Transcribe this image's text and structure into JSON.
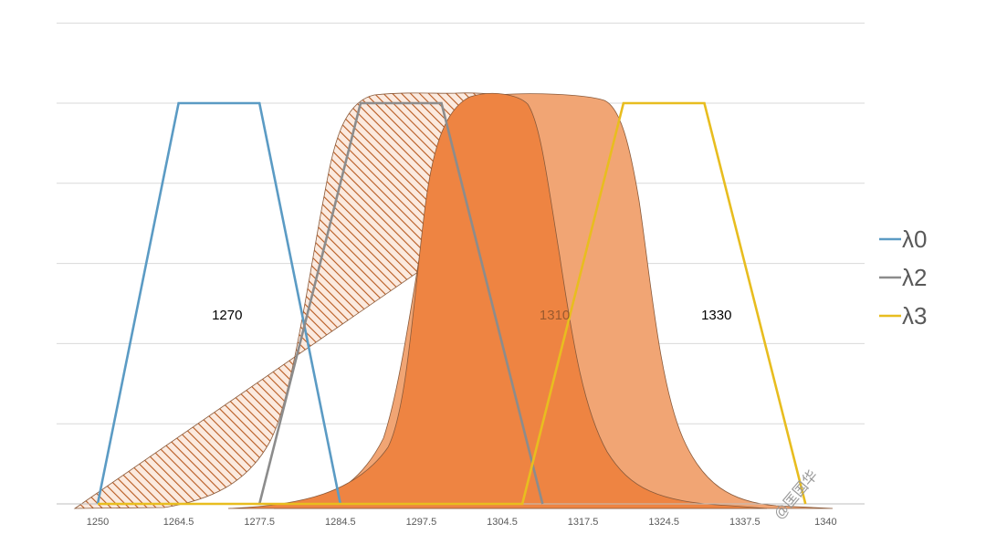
{
  "chart_data": {
    "type": "area",
    "title": "",
    "xlabel": "",
    "ylabel": "",
    "x_ticks": [
      "1250",
      "1264.5",
      "1277.5",
      "1284.5",
      "1297.5",
      "1304.5",
      "1317.5",
      "1324.5",
      "1337.5",
      "1340"
    ],
    "grid": true,
    "legend_position": "right",
    "series": [
      {
        "name": "λ0",
        "color": "#5b9bc4",
        "points": [
          [
            0,
            0
          ],
          [
            2,
            5
          ],
          [
            4,
            5
          ],
          [
            6,
            0
          ]
        ]
      },
      {
        "name": "λ2",
        "color": "#8c8c8c",
        "points": [
          [
            4,
            0
          ],
          [
            6.5,
            5
          ],
          [
            8.5,
            5
          ],
          [
            11,
            0
          ]
        ]
      },
      {
        "name": "λ3",
        "color": "#e8bd1f",
        "points": [
          [
            0,
            0
          ],
          [
            2,
            0
          ],
          [
            10.5,
            0
          ],
          [
            13,
            5
          ],
          [
            15,
            5
          ],
          [
            17.5,
            0
          ]
        ]
      }
    ],
    "area_fill_color": "#ed7d31",
    "annotations": [
      {
        "text": "1270",
        "x": 3.2,
        "y": 2.3,
        "color": "#000000"
      },
      {
        "text": "1310",
        "x": 11.3,
        "y": 2.3,
        "color": "#9a5a2e"
      },
      {
        "text": "1330",
        "x": 15.3,
        "y": 2.3,
        "color": "#000000"
      }
    ]
  },
  "watermark": "@匡国华"
}
